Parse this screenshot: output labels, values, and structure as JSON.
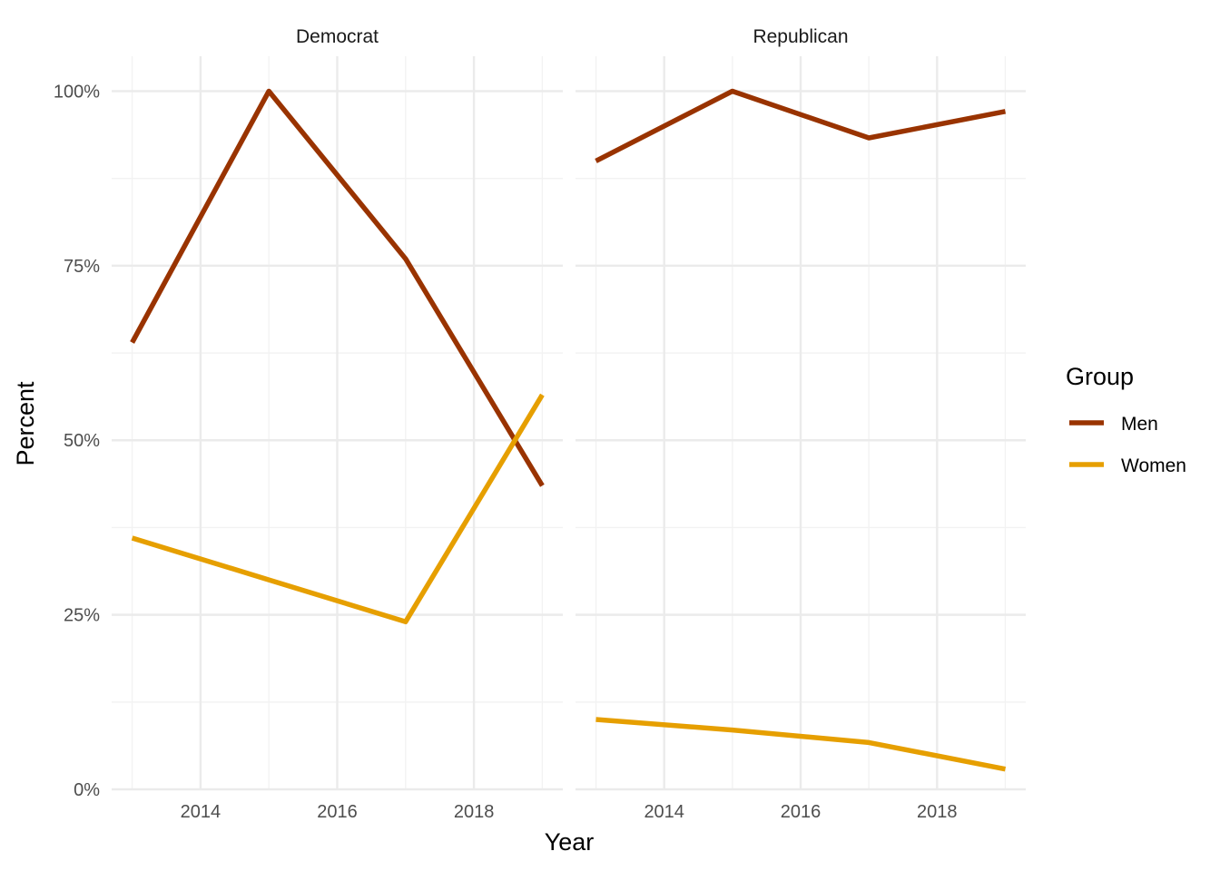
{
  "chart_data": {
    "type": "line",
    "facets": [
      {
        "name": "Democrat",
        "series": [
          {
            "name": "Men",
            "x": [
              2013,
              2015,
              2017,
              2019
            ],
            "values": [
              64,
              100,
              76,
              43.5
            ]
          },
          {
            "name": "Women",
            "x": [
              2013,
              2015,
              2017,
              2019
            ],
            "values": [
              36,
              30,
              24,
              56.5
            ]
          }
        ]
      },
      {
        "name": "Republican",
        "series": [
          {
            "name": "Men",
            "x": [
              2013,
              2015,
              2017,
              2019
            ],
            "values": [
              90,
              100,
              93.3,
              97.1
            ]
          },
          {
            "name": "Women",
            "x": [
              2013,
              2015,
              2017,
              2019
            ],
            "values": [
              10,
              8.5,
              6.7,
              2.9
            ]
          }
        ]
      }
    ],
    "xlabel": "Year",
    "ylabel": "Percent",
    "x_ticks": [
      2014,
      2016,
      2018
    ],
    "y_ticks": [
      0,
      25,
      50,
      75,
      100
    ],
    "y_tick_labels": [
      "0%",
      "25%",
      "50%",
      "75%",
      "100%"
    ],
    "xlim": [
      2012.7,
      2019.3
    ],
    "ylim": [
      0,
      105
    ],
    "grid": true,
    "legend": {
      "title": "Group",
      "position": "right",
      "entries": [
        {
          "name": "Men",
          "color": "#993300"
        },
        {
          "name": "Women",
          "color": "#E69F00"
        }
      ]
    },
    "colors": {
      "Men": "#993300",
      "Women": "#E69F00"
    }
  }
}
